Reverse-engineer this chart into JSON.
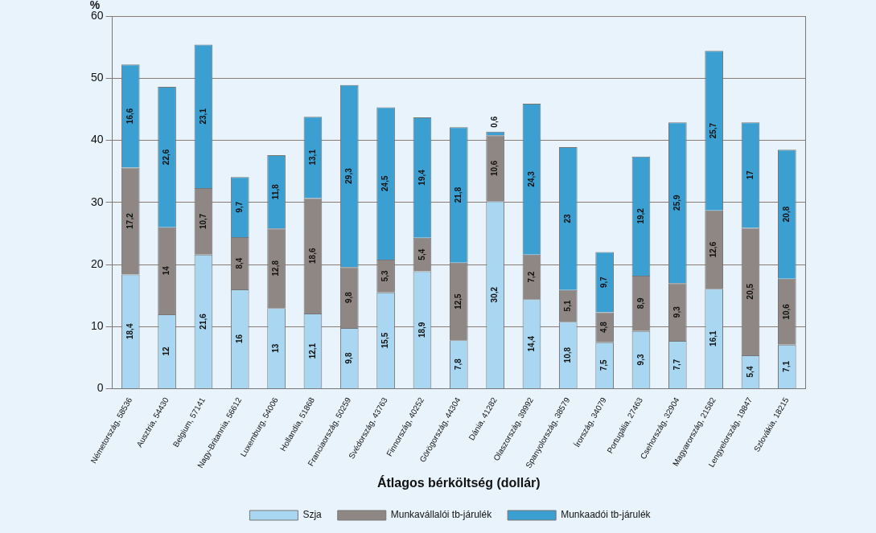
{
  "chart_data": {
    "type": "bar",
    "stacked": true,
    "ylabel": "%",
    "xlabel": "Átlagos bérköltség (dollár)",
    "categories": [
      "Németország, 58536",
      "Ausztria, 54430",
      "Belgium, 57141",
      "Nagy-Britannia, 56612",
      "Luxemburg, 54006",
      "Hollandia, 51868",
      "Franciaország, 50259",
      "Svédország, 43763",
      "Finnország, 40252",
      "Görögország, 44304",
      "Dánia, 41282",
      "Olaszország, 39992",
      "Spanyolország, 38579",
      "Írország, 34079",
      "Portugália, 27463",
      "Csehország, 32904",
      "Magyarország, 21582",
      "Lengyelország, 19847",
      "Szlovákia, 18215"
    ],
    "series": [
      {
        "name": "Szja",
        "color": "#a9d6f0",
        "values": [
          18.4,
          12,
          21.6,
          16,
          13,
          12.1,
          9.8,
          15.5,
          18.9,
          7.8,
          30.2,
          14.4,
          10.8,
          7.5,
          9.3,
          7.7,
          16.1,
          5.4,
          7.1
        ],
        "value_labels": [
          "18,4",
          "12",
          "21,6",
          "16",
          "13",
          "12,1",
          "9,8",
          "15,5",
          "18,9",
          "7,8",
          "30,2",
          "14,4",
          "10,8",
          "7,5",
          "9,3",
          "7,7",
          "16,1",
          "5,4",
          "7,1"
        ]
      },
      {
        "name": "Munkavállalói tb-járulék",
        "color": "#8e8784",
        "values": [
          17.2,
          14,
          10.7,
          8.4,
          12.8,
          18.6,
          9.8,
          5.3,
          5.4,
          12.5,
          10.6,
          7.2,
          5.1,
          4.8,
          8.9,
          9.3,
          12.6,
          20.5,
          10.6
        ],
        "value_labels": [
          "17,2",
          "14",
          "10,7",
          "8,4",
          "12,8",
          "18,6",
          "9,8",
          "5,3",
          "5,4",
          "12,5",
          "10,6",
          "7,2",
          "5,1",
          "4,8",
          "8,9",
          "9,3",
          "12,6",
          "20,5",
          "10,6"
        ]
      },
      {
        "name": "Munkaadói tb-járulék",
        "color": "#3b9fd1",
        "values": [
          16.6,
          22.6,
          23.1,
          9.7,
          11.8,
          13.1,
          29.3,
          24.5,
          19.4,
          21.8,
          0.6,
          24.3,
          23,
          9.7,
          19.2,
          25.9,
          25.7,
          17,
          20.8
        ],
        "value_labels": [
          "16,6",
          "22,6",
          "23,1",
          "9,7",
          "11,8",
          "13,1",
          "29,3",
          "24,5",
          "19,4",
          "21,8",
          "0,6",
          "24,3",
          "23",
          "9,7",
          "19,2",
          "25,9",
          "25,7",
          "17",
          "20,8"
        ]
      }
    ],
    "ylim": [
      0,
      60
    ],
    "yticks": [
      0,
      10,
      20,
      30,
      40,
      50,
      60
    ],
    "grid": "y",
    "legend": "bottom"
  }
}
